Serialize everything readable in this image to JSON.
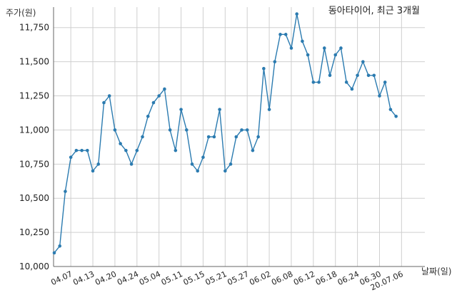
{
  "chart_data": {
    "type": "line",
    "title": "동아타이어, 최근 3개월",
    "ylabel": "주가(원)",
    "xlabel": "날짜(일)",
    "ylim": [
      10000,
      11900
    ],
    "yticks": [
      10000,
      10250,
      10500,
      10750,
      11000,
      11250,
      11500,
      11750
    ],
    "ytick_labels": [
      "10,000",
      "10,250",
      "10,500",
      "10,750",
      "11,000",
      "11,250",
      "11,500",
      "11,750"
    ],
    "xtick_labels": [
      "04.07",
      "04.13",
      "04.20",
      "04.24",
      "05.04",
      "05.11",
      "05.15",
      "05.21",
      "05.27",
      "06.02",
      "06.08",
      "06.12",
      "06.18",
      "06.24",
      "06.30",
      "20.07.06"
    ],
    "xtick_positions": [
      3,
      7,
      11,
      15,
      19,
      23,
      27,
      31,
      35,
      39,
      43,
      47,
      51,
      55,
      59,
      63
    ],
    "grid": true,
    "line_color": "#2b7bb0",
    "series": [
      {
        "values": [
          10100,
          10150,
          10550,
          10800,
          10850,
          10850,
          10850,
          10700,
          10750,
          11200,
          11250,
          11000,
          10900,
          10850,
          10750,
          10850,
          10950,
          11100,
          11200,
          11250,
          11300,
          11000,
          10850,
          11150,
          11000,
          10750,
          10700,
          10800,
          10950,
          10950,
          11150,
          10700,
          10750,
          10950,
          11000,
          11000,
          10850,
          10950,
          11450,
          11150,
          11500,
          11700,
          11700,
          11600,
          11850,
          11650,
          11550,
          11350,
          11350,
          11600,
          11400,
          11550,
          11600,
          11350,
          11300,
          11400,
          11500,
          11400,
          11400,
          11250,
          11350,
          11150,
          11100
        ]
      }
    ]
  }
}
